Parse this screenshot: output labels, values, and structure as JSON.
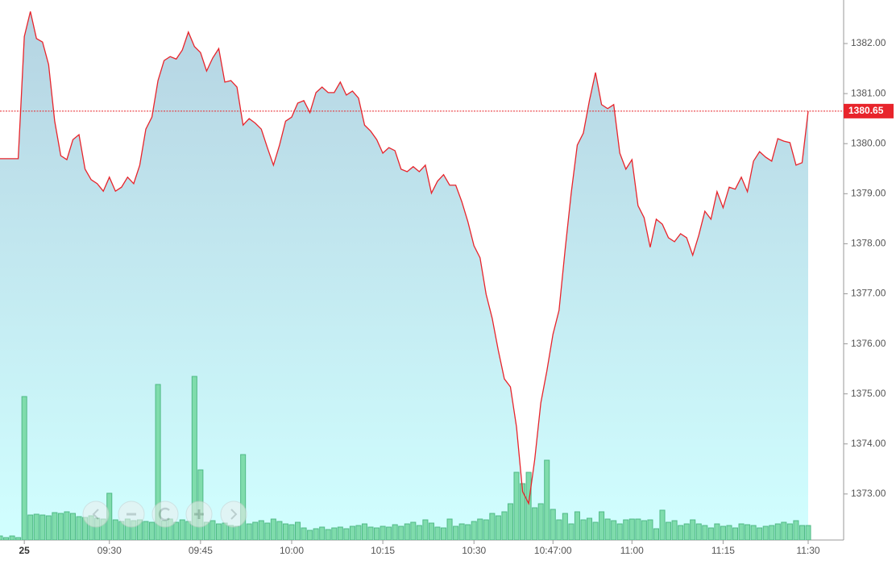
{
  "chart_data": {
    "type": "line",
    "categories": [
      null,
      null,
      null,
      null,
      "25",
      null,
      null,
      null,
      null,
      null,
      null,
      null,
      null,
      null,
      null,
      null,
      null,
      null,
      "09:30",
      null,
      null,
      null,
      null,
      null,
      null,
      null,
      null,
      null,
      null,
      null,
      null,
      null,
      null,
      "09:45",
      null,
      null,
      null,
      null,
      null,
      null,
      null,
      null,
      null,
      null,
      null,
      null,
      null,
      null,
      "10:00",
      null,
      null,
      null,
      null,
      null,
      null,
      null,
      null,
      null,
      null,
      null,
      null,
      null,
      null,
      "10:15",
      null,
      null,
      null,
      null,
      null,
      null,
      null,
      null,
      null,
      null,
      null,
      null,
      null,
      null,
      "10:30",
      null,
      null,
      null,
      null,
      null,
      null,
      null,
      null,
      null,
      null,
      null,
      null,
      "10:47:00",
      null,
      null,
      null,
      null,
      null,
      null,
      null,
      null,
      null,
      null,
      null,
      null,
      "11:00",
      null,
      null,
      null,
      null,
      null,
      null,
      null,
      null,
      null,
      null,
      null,
      null,
      null,
      null,
      "11:15",
      null,
      null,
      null,
      null,
      null,
      null,
      null,
      null,
      null,
      null,
      null,
      null,
      null,
      "11:30"
    ],
    "series": [
      {
        "color": "#e8242b",
        "area_colors": [
          "#a8ccdd",
          "#c9ffff"
        ],
        "values": [
          1379.7,
          1379.7,
          1379.7,
          1379.7,
          1382.14,
          1382.64,
          1382.1,
          1382.03,
          1381.58,
          1380.45,
          1379.76,
          1379.68,
          1380.08,
          1380.18,
          1379.49,
          1379.28,
          1379.2,
          1379.05,
          1379.33,
          1379.05,
          1379.13,
          1379.33,
          1379.2,
          1379.57,
          1380.29,
          1380.53,
          1381.26,
          1381.66,
          1381.74,
          1381.69,
          1381.87,
          1382.23,
          1381.94,
          1381.82,
          1381.45,
          1381.71,
          1381.9,
          1381.23,
          1381.26,
          1381.13,
          1380.37,
          1380.5,
          1380.41,
          1380.29,
          1379.92,
          1379.57,
          1379.97,
          1380.45,
          1380.53,
          1380.81,
          1380.86,
          1380.62,
          1381.02,
          1381.13,
          1381.02,
          1381.02,
          1381.23,
          1380.97,
          1381.05,
          1380.91,
          1380.37,
          1380.25,
          1380.08,
          1379.81,
          1379.92,
          1379.86,
          1379.49,
          1379.44,
          1379.54,
          1379.44,
          1379.57,
          1379.01,
          1379.25,
          1379.38,
          1379.17,
          1379.17,
          1378.84,
          1378.44,
          1377.96,
          1377.72,
          1376.99,
          1376.51,
          1375.87,
          1375.3,
          1375.14,
          1374.34,
          1373.05,
          1372.81,
          1373.69,
          1374.82,
          1375.46,
          1376.19,
          1376.67,
          1377.88,
          1379.01,
          1379.97,
          1380.21,
          1380.86,
          1381.42,
          1380.78,
          1380.7,
          1380.78,
          1379.81,
          1379.49,
          1379.68,
          1378.76,
          1378.52,
          1377.93,
          1378.49,
          1378.39,
          1378.12,
          1378.04,
          1378.2,
          1378.12,
          1377.77,
          1378.17,
          1378.65,
          1378.49,
          1379.04,
          1378.72,
          1379.13,
          1379.09,
          1379.33,
          1379.04,
          1379.65,
          1379.84,
          1379.73,
          1379.65,
          1380.1,
          1380.05,
          1380.02,
          1379.57,
          1379.62,
          1380.65
        ]
      }
    ],
    "volume": {
      "color": "#7fdcac",
      "stroke": "#4fba86",
      "values": [
        5,
        3,
        5,
        3,
        178,
        31,
        32,
        31,
        30,
        34,
        33,
        35,
        33,
        29,
        28,
        30,
        27,
        26,
        58,
        25,
        23,
        26,
        24,
        25,
        23,
        22,
        193,
        24,
        26,
        22,
        25,
        23,
        203,
        87,
        22,
        24,
        20,
        21,
        18,
        17,
        106,
        20,
        22,
        24,
        21,
        26,
        23,
        20,
        19,
        22,
        15,
        12,
        14,
        16,
        13,
        15,
        16,
        14,
        17,
        18,
        20,
        16,
        15,
        17,
        16,
        19,
        17,
        20,
        22,
        18,
        25,
        21,
        16,
        15,
        26,
        17,
        20,
        19,
        23,
        26,
        25,
        33,
        30,
        35,
        45,
        84,
        70,
        84,
        40,
        45,
        99,
        38,
        25,
        33,
        20,
        35,
        25,
        27,
        22,
        35,
        26,
        24,
        20,
        25,
        26,
        26,
        24,
        25,
        14,
        37,
        22,
        24,
        18,
        20,
        25,
        20,
        18,
        15,
        20,
        17,
        18,
        15,
        20,
        19,
        18,
        15,
        17,
        18,
        20,
        22,
        20,
        24,
        18,
        18
      ]
    },
    "ylim": [
      1372.08,
      1382.87
    ],
    "yticks": [
      {
        "value": 1373,
        "label": "1373.00"
      },
      {
        "value": 1374,
        "label": "1374.00"
      },
      {
        "value": 1375,
        "label": "1375.00"
      },
      {
        "value": 1376,
        "label": "1376.00"
      },
      {
        "value": 1377,
        "label": "1377.00"
      },
      {
        "value": 1378,
        "label": "1378.00"
      },
      {
        "value": 1379,
        "label": "1379.00"
      },
      {
        "value": 1380,
        "label": "1380.00"
      },
      {
        "value": 1381,
        "label": "1381.00"
      },
      {
        "value": 1382,
        "label": "1382.00"
      }
    ],
    "grid": false
  }
}
